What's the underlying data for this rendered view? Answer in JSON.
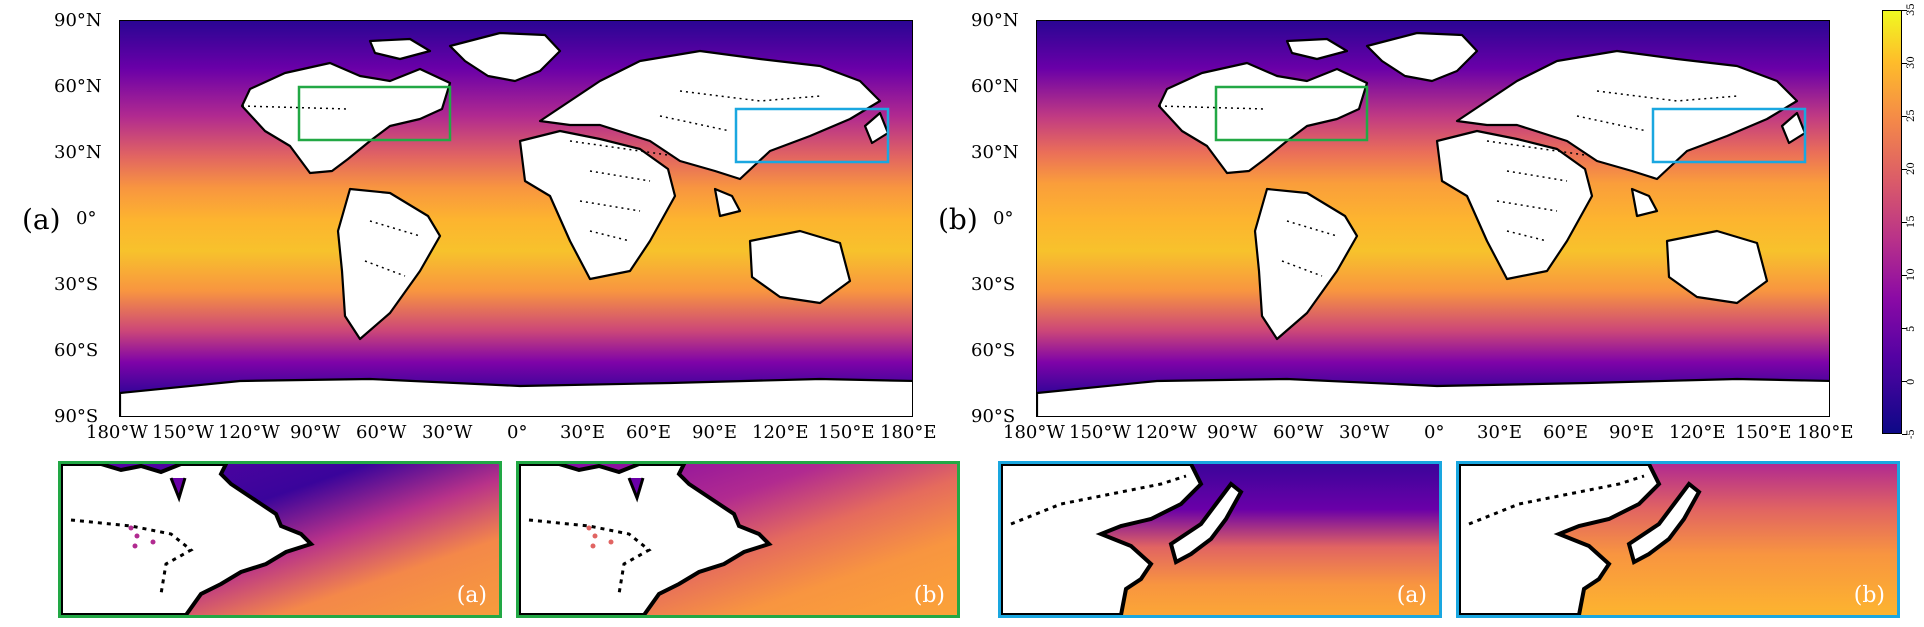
{
  "maps": [
    {
      "panel_label": "(a)",
      "lat_labels": [
        "90°N",
        "60°N",
        "30°N",
        "0°",
        "30°S",
        "60°S",
        "90°S"
      ],
      "lon_labels": [
        "180°W",
        "150°W",
        "120°W",
        "90°W",
        "60°W",
        "30°W",
        "0°",
        "30°E",
        "60°E",
        "90°E",
        "120°E",
        "150°E",
        "180°E"
      ]
    },
    {
      "panel_label": "(b)",
      "lat_labels": [
        "90°N",
        "60°N",
        "30°N",
        "0°",
        "30°S",
        "60°S",
        "90°S"
      ],
      "lon_labels": [
        "180°W",
        "150°W",
        "120°W",
        "90°W",
        "60°W",
        "30°W",
        "0°",
        "30°E",
        "60°E",
        "90°E",
        "120°E",
        "150°E",
        "180°E"
      ]
    }
  ],
  "regions": [
    {
      "name": "North Atlantic box",
      "color": "#22a845",
      "lon": [
        -98,
        -30
      ],
      "lat": [
        34,
        58
      ]
    },
    {
      "name": "Northwest Pacific box",
      "color": "#1aa7e0",
      "lon": [
        101,
        170
      ],
      "lat": [
        25,
        49
      ]
    }
  ],
  "insets": [
    {
      "tag": "(a)",
      "region": "North Atlantic",
      "border_color": "#22a845"
    },
    {
      "tag": "(b)",
      "region": "North Atlantic",
      "border_color": "#22a845"
    },
    {
      "tag": "(a)",
      "region": "Northwest Pacific",
      "border_color": "#1aa7e0"
    },
    {
      "tag": "(b)",
      "region": "Northwest Pacific",
      "border_color": "#1aa7e0"
    }
  ],
  "colorbar": {
    "colormap": "plasma",
    "min": -5,
    "max": 35,
    "ticks": [
      "-5",
      "0",
      "5",
      "10",
      "15",
      "20",
      "25",
      "30",
      "35"
    ]
  }
}
